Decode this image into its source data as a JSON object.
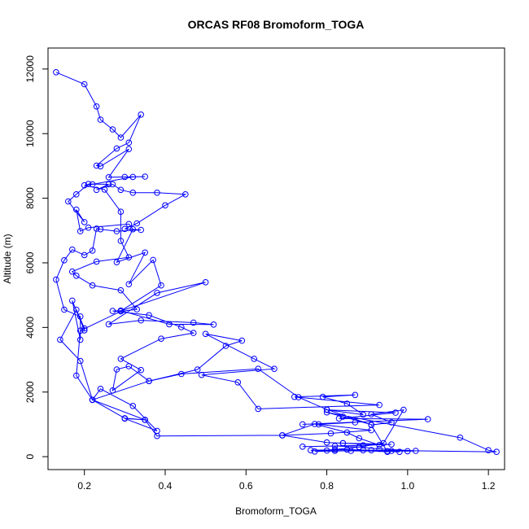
{
  "chart_data": {
    "type": "line",
    "title": "ORCAS RF08 Bromoform_TOGA",
    "xlabel": "Bromoform_TOGA",
    "ylabel": "Altitude (m)",
    "xlim": [
      0.11,
      1.24
    ],
    "ylim": [
      -400,
      12650
    ],
    "xticks": [
      "0.2",
      "0.4",
      "0.6",
      "0.8",
      "1.0",
      "1.2"
    ],
    "xtick_values": [
      0.2,
      0.4,
      0.6,
      0.8,
      1.0,
      1.2
    ],
    "yticks": [
      "0",
      "2000",
      "4000",
      "6000",
      "8000",
      "10000",
      "12000"
    ],
    "ytick_values": [
      0,
      2000,
      4000,
      6000,
      8000,
      10000,
      12000
    ],
    "grid": false,
    "series_color": "#0000ff",
    "markers": "open-circle",
    "series": [
      {
        "values": [
          [
            0.98,
            150
          ],
          [
            0.95,
            170
          ],
          [
            0.86,
            180
          ],
          [
            0.8,
            190
          ],
          [
            0.76,
            200
          ],
          [
            0.85,
            220
          ],
          [
            0.96,
            180
          ],
          [
            1.0,
            170
          ],
          [
            1.02,
            180
          ],
          [
            0.93,
            240
          ],
          [
            0.88,
            300
          ],
          [
            0.82,
            330
          ],
          [
            0.74,
            310
          ],
          [
            0.89,
            350
          ],
          [
            0.96,
            380
          ],
          [
            0.84,
            420
          ],
          [
            0.8,
            440
          ],
          [
            0.69,
            660
          ],
          [
            0.81,
            720
          ],
          [
            0.91,
            820
          ],
          [
            0.78,
            1000
          ],
          [
            0.87,
            1060
          ],
          [
            0.74,
            1000
          ],
          [
            1.05,
            1160
          ],
          [
            0.83,
            1180
          ],
          [
            0.97,
            1360
          ],
          [
            0.8,
            1450
          ],
          [
            0.89,
            1300
          ],
          [
            0.85,
            1640
          ],
          [
            0.79,
            1850
          ],
          [
            0.87,
            1910
          ],
          [
            0.72,
            1850
          ],
          [
            0.93,
            1600
          ],
          [
            0.63,
            1480
          ],
          [
            0.58,
            2300
          ],
          [
            0.49,
            2530
          ],
          [
            0.67,
            2720
          ],
          [
            0.62,
            3030
          ],
          [
            0.5,
            3800
          ],
          [
            0.59,
            3590
          ],
          [
            0.55,
            3430
          ],
          [
            0.48,
            2700
          ],
          [
            0.36,
            2340
          ],
          [
            0.31,
            2800
          ],
          [
            0.28,
            2700
          ],
          [
            0.27,
            2050
          ],
          [
            0.34,
            2680
          ],
          [
            0.29,
            3030
          ],
          [
            0.39,
            3650
          ],
          [
            0.47,
            3830
          ],
          [
            0.44,
            4010
          ],
          [
            0.36,
            4380
          ],
          [
            0.27,
            4510
          ],
          [
            0.29,
            4520
          ],
          [
            0.41,
            4100
          ],
          [
            0.52,
            4090
          ],
          [
            0.47,
            4150
          ],
          [
            0.34,
            4220
          ],
          [
            0.26,
            4100
          ],
          [
            0.38,
            5070
          ],
          [
            0.5,
            5400
          ],
          [
            0.29,
            4510
          ],
          [
            0.39,
            5300
          ],
          [
            0.37,
            6090
          ],
          [
            0.31,
            5340
          ],
          [
            0.35,
            6320
          ],
          [
            0.28,
            6020
          ],
          [
            0.32,
            7040
          ],
          [
            0.31,
            7200
          ],
          [
            0.21,
            7090
          ],
          [
            0.19,
            6980
          ],
          [
            0.18,
            7650
          ],
          [
            0.2,
            7260
          ],
          [
            0.16,
            7900
          ],
          [
            0.18,
            8120
          ],
          [
            0.21,
            8440
          ],
          [
            0.26,
            8430
          ],
          [
            0.23,
            8260
          ],
          [
            0.27,
            8430
          ],
          [
            0.29,
            8260
          ],
          [
            0.32,
            8170
          ],
          [
            0.38,
            8170
          ],
          [
            0.45,
            8120
          ],
          [
            0.4,
            7780
          ],
          [
            0.33,
            7220
          ],
          [
            0.3,
            7050
          ],
          [
            0.34,
            7020
          ],
          [
            0.28,
            6980
          ],
          [
            0.24,
            7040
          ],
          [
            0.23,
            7060
          ],
          [
            0.22,
            6380
          ],
          [
            0.2,
            6240
          ],
          [
            0.17,
            6410
          ],
          [
            0.15,
            6080
          ],
          [
            0.13,
            5480
          ],
          [
            0.15,
            4550
          ],
          [
            0.19,
            4340
          ],
          [
            0.19,
            3620
          ],
          [
            0.17,
            4830
          ],
          [
            0.2,
            3910
          ],
          [
            0.2,
            3970
          ],
          [
            0.18,
            4550
          ],
          [
            0.14,
            3620
          ],
          [
            0.19,
            2960
          ],
          [
            0.22,
            1760
          ],
          [
            0.3,
            1190
          ],
          [
            0.35,
            1140
          ],
          [
            0.22,
            1760
          ],
          [
            0.24,
            2100
          ],
          [
            0.32,
            1570
          ],
          [
            0.38,
            800
          ],
          [
            0.3,
            1180
          ],
          [
            0.35,
            1140
          ],
          [
            0.38,
            640
          ],
          [
            0.69,
            660
          ],
          [
            0.77,
            1010
          ],
          [
            0.85,
            750
          ],
          [
            0.88,
            570
          ],
          [
            0.93,
            360
          ],
          [
            0.84,
            420
          ]
        ]
      },
      {
        "values": [
          [
            0.13,
            11900
          ],
          [
            0.2,
            11530
          ],
          [
            0.23,
            10840
          ],
          [
            0.24,
            10430
          ],
          [
            0.27,
            10130
          ],
          [
            0.29,
            9880
          ],
          [
            0.34,
            10590
          ],
          [
            0.31,
            9720
          ],
          [
            0.28,
            9540
          ],
          [
            0.23,
            9010
          ],
          [
            0.24,
            8990
          ],
          [
            0.31,
            9520
          ],
          [
            0.26,
            8650
          ],
          [
            0.3,
            8660
          ],
          [
            0.35,
            8670
          ],
          [
            0.32,
            8660
          ],
          [
            0.22,
            8430
          ],
          [
            0.2,
            8400
          ],
          [
            0.25,
            8270
          ],
          [
            0.29,
            7580
          ],
          [
            0.29,
            6680
          ],
          [
            0.31,
            6170
          ],
          [
            0.23,
            6040
          ],
          [
            0.17,
            5730
          ],
          [
            0.18,
            5600
          ],
          [
            0.22,
            5300
          ],
          [
            0.29,
            5150
          ],
          [
            0.33,
            4560
          ],
          [
            0.29,
            4500
          ],
          [
            0.19,
            3900
          ],
          [
            0.18,
            2510
          ],
          [
            0.22,
            1760
          ],
          [
            0.36,
            2340
          ],
          [
            0.44,
            2560
          ],
          [
            0.63,
            2720
          ],
          [
            0.73,
            1840
          ],
          [
            0.8,
            1460
          ],
          [
            0.91,
            990
          ],
          [
            0.84,
            1240
          ],
          [
            0.8,
            1370
          ],
          [
            1.13,
            590
          ],
          [
            1.2,
            200
          ],
          [
            1.22,
            150
          ],
          [
            0.91,
            200
          ],
          [
            0.77,
            160
          ],
          [
            0.82,
            220
          ],
          [
            0.88,
            300
          ],
          [
            0.94,
            420
          ],
          [
            0.99,
            1450
          ],
          [
            0.91,
            1310
          ],
          [
            0.96,
            1060
          ],
          [
            0.91,
            980
          ],
          [
            0.95,
            150
          ],
          [
            0.89,
            200
          ],
          [
            0.82,
            180
          ]
        ]
      }
    ]
  }
}
